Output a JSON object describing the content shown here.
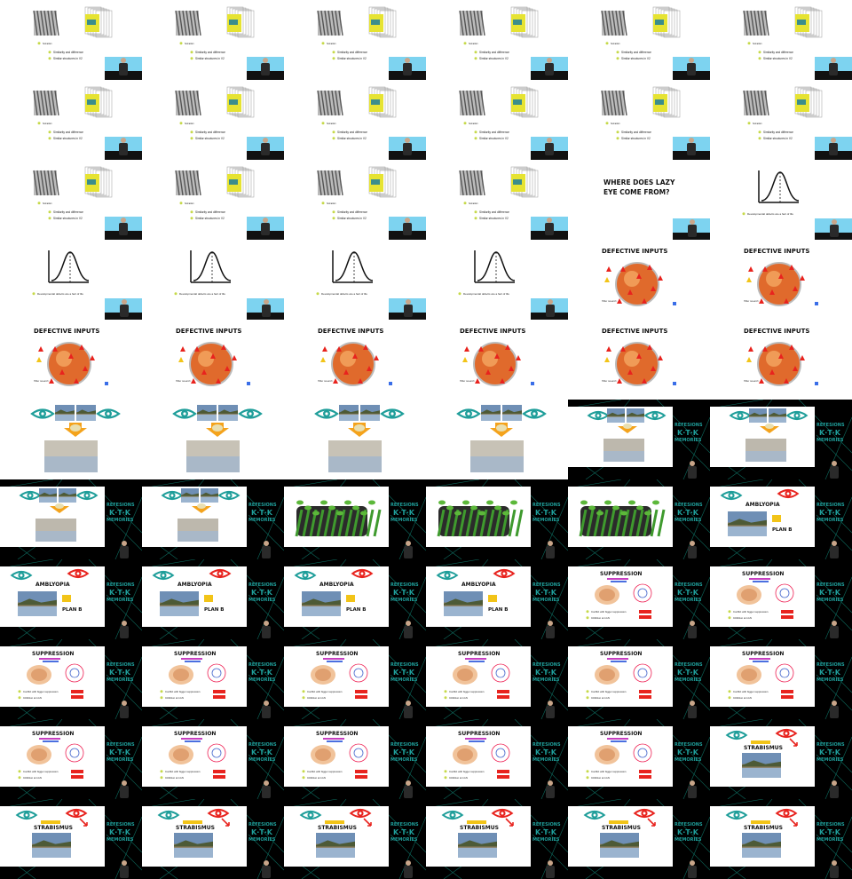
{
  "grid": {
    "columns": 6,
    "rows": 11
  },
  "colors": {
    "teal": "#1f9e9a",
    "red": "#e8231e",
    "yellow": "#f2c418",
    "orange": "#f4a31c",
    "white": "#ffffff",
    "black": "#000000",
    "network": "#0d6a5e"
  },
  "labels": {
    "somatism": "Somatism",
    "similarity": "Similarity and difference",
    "similar_structures": "Similar structures in V2",
    "lazy_eye_q": "WHERE DOES LAZY EYE COME FROM?",
    "dev_defects": "Developmental defects are a fact of life",
    "defective_inputs": "DEFECTIVE INPUTS",
    "amblyopia": "AMBLYOPIA",
    "plan_b": "PLAN B",
    "suppression": "SUPPRESSION",
    "strabismus": "STRABISMUS",
    "conflict": "Conflict with bigger suppression",
    "inhibition": "Inhibition at LGN",
    "brand_line1": "REFESIONS",
    "brand_line2": "MEMORIES"
  },
  "frames": [
    "v2",
    "v2",
    "v2",
    "v2",
    "v2",
    "v2",
    "v2",
    "v2",
    "v2",
    "v2",
    "v2",
    "v2",
    "v2",
    "v2",
    "v2",
    "v2",
    "lazy",
    "curve",
    "curve",
    "curve",
    "curve",
    "curve",
    "defect",
    "defect",
    "defect",
    "defect",
    "defect",
    "defect",
    "defect",
    "defect",
    "eyes",
    "eyes",
    "eyes",
    "eyes",
    "eyes_b",
    "eyes_b",
    "eyes_b",
    "eyes_b",
    "plants",
    "plants",
    "plants",
    "amb",
    "amb",
    "amb",
    "amb",
    "amb",
    "supp",
    "supp",
    "supp",
    "supp",
    "supp",
    "supp",
    "supp",
    "supp",
    "supp",
    "supp",
    "supp",
    "supp",
    "supp",
    "strab",
    "strab",
    "strab",
    "strab",
    "strab",
    "strab",
    "strab"
  ]
}
